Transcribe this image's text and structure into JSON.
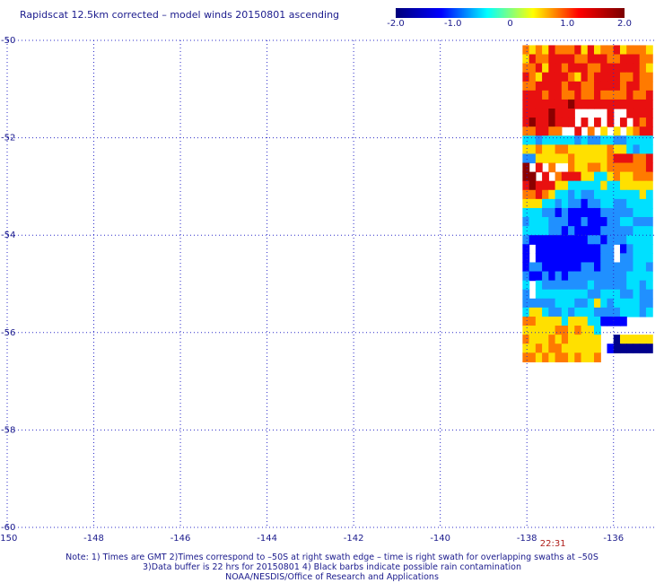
{
  "title": "Rapidscat 12.5km corrected – model winds 20150801 ascending",
  "colorbar": {
    "min": -2.0,
    "max": 2.0,
    "ticks": [
      "-2.0",
      "-1.0",
      "0",
      "1.0",
      "2.0"
    ],
    "tick_values": [
      -2.0,
      -1.0,
      0,
      1.0,
      2.0
    ],
    "stops": [
      "#00007a",
      "#0000ff",
      "#00ffff",
      "#ffff00",
      "#ff0000",
      "#7a0000"
    ]
  },
  "map": {
    "lon_range": [
      -150,
      -135
    ],
    "lat_range": [
      -60,
      -50
    ],
    "lon_ticks": [
      -150,
      -148,
      -146,
      -144,
      -142,
      -140,
      -138,
      -136
    ],
    "lat_ticks": [
      -50,
      -52,
      -54,
      -56,
      -58,
      -60
    ],
    "lon_tick_labels": [
      "-150",
      "-148",
      "-146",
      "-144",
      "-142",
      "-140",
      "-138",
      "-136"
    ],
    "lat_tick_labels": [
      "-50",
      "-52",
      "-54",
      "-56",
      "-58",
      "-60"
    ],
    "time_label": "22:31",
    "time_label_lon": -137.4,
    "grid_color": "#2a2ac8"
  },
  "notes": [
    "Note: 1) Times are GMT 2)Times correspond to –50S at right swath edge – time is right swath for overlapping swaths at –50S",
    "3)Data buffer is 22 hrs for 20150801 4) Black barbs indicate possible rain contamination",
    "NOAA/NESDIS/Office of Research and Applications"
  ],
  "swath": {
    "lon_range": [
      -138.1,
      -135.1
    ],
    "lat_start": -50.1,
    "lat_end": -56.6,
    "colors": {
      "dr": "#8b0000",
      "r": "#e81010",
      "o": "#ff7a00",
      "y": "#ffe000",
      "c": "#00e0ff",
      "b": "#2090ff",
      "n": "#0000ff",
      "k": "#00008b"
    },
    "rows": [
      "oyoyroooryryooryoooy",
      "yroorrrroorrroorrroo",
      "ooryrrorrroorrrrrroy",
      "royrrrroyrorrrrooroo",
      "oorrrrorroorrrrorroo",
      "rrrorrooroorooooroor",
      "rrrrrrrdrrrrrrrrrrrr",
      "rrrrdrrrdrrrrrrrrrrr",
      "rdrrdrrrrrorrrrrrror",
      "oorroooorooyyryyyorr",
      "ccbcccccbcbbccbbcccc",
      "yyoyyooyyyyyyoyycbcc",
      "bbyyyyyoyyyyyorrroor",
      "ddrdoyyoyyooyoooooor",
      "ddrroorrryyccyoyyooo",
      "rdrrryycccccyccyyyyy",
      "ooroyccbcbbcccccccyc",
      "yyyccbcbbnbbccbbcccc",
      "cccbbnbnnnnnbbbbbccc",
      "bcccbbbnnbnnnbbccbbb",
      "ccccbbnbnnnnbbbbbccc",
      "bnnnnnnnnnbbnbbbcccc",
      "nnnnnnnnnnnnbbbnbccc",
      "nnnnnnnnnnnnbbbbbccc",
      "nbbnnnnnnbbnbbbbbccb",
      "bnnbnbnbbbbbbbbbcccc",
      "cccbbbbbbbcbbbbbccbc",
      "bbccccccccbbcccbbcbb",
      "bbbbbcccbbcycbccccbb",
      "cyycbbcbcccbbbbcccbc",
      "ooyyyycyyyccnnnnnnnk",
      "yyyyyooyoyycyyknnnnn",
      "oyyyoyoyyyyykkkyyyyy",
      "yyoyooyyyyyyynkkkkkk",
      "ooyoyooyoyyo........"
    ],
    "gaps": [
      [
        7,
        [
          8,
          9,
          10,
          11,
          12,
          14,
          15
        ]
      ],
      [
        8,
        [
          8,
          10,
          12,
          14,
          16
        ]
      ],
      [
        9,
        [
          6,
          7,
          9,
          11,
          13,
          15
        ]
      ],
      [
        13,
        [
          1,
          3,
          5,
          6
        ]
      ],
      [
        14,
        [
          2,
          4
        ]
      ],
      [
        22,
        [
          1,
          14
        ]
      ],
      [
        23,
        [
          1,
          14
        ]
      ],
      [
        26,
        [
          1
        ]
      ],
      [
        27,
        [
          1
        ]
      ],
      [
        30,
        [
          16,
          17,
          18,
          19
        ]
      ],
      [
        31,
        [
          12,
          13,
          14,
          15,
          16,
          17,
          18,
          19
        ]
      ],
      [
        32,
        [
          12,
          13
        ]
      ],
      [
        33,
        [
          12
        ]
      ]
    ]
  }
}
